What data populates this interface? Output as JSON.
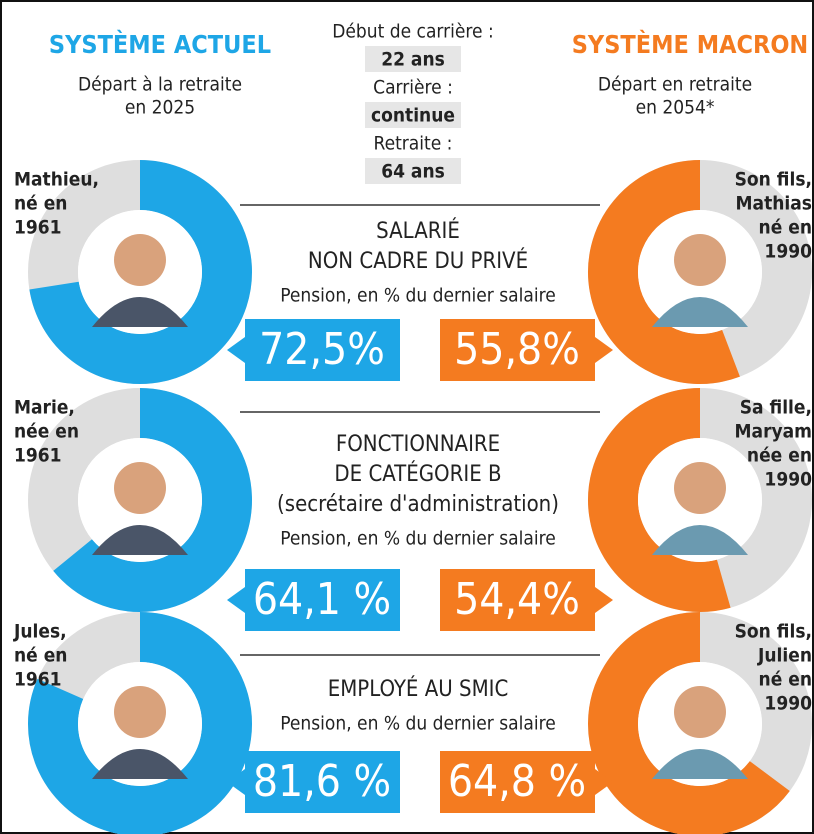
{
  "left": {
    "title": "SYSTÈME ACTUEL",
    "subtitle": [
      "Départ à la retraite",
      "en 2025"
    ]
  },
  "right": {
    "title": "SYSTÈME MACRON",
    "subtitle": [
      "Départ en retraite",
      "en 2054*"
    ]
  },
  "center": [
    {
      "label": "Début de carrière :",
      "value": "22 ans"
    },
    {
      "label": "Carrière :",
      "value": "continue"
    },
    {
      "label": "Retraite :",
      "value": "64 ans"
    }
  ],
  "rows": [
    {
      "category": [
        "SALARIÉ",
        "NON CADRE DU PRIVÉ"
      ],
      "caption": "Pension, en % du dernier salaire",
      "left": {
        "person": [
          "Mathieu,",
          "né en",
          "1961"
        ],
        "value": 72.5,
        "value_label": "72,5%"
      },
      "right": {
        "person": [
          "Son fils,",
          "Mathias",
          "né en",
          "1990"
        ],
        "value": 55.8,
        "value_label": "55,8%"
      }
    },
    {
      "category": [
        "FONCTIONNAIRE",
        "DE CATÉGORIE B",
        "(secrétaire d'administration)"
      ],
      "caption": "Pension, en % du dernier salaire",
      "left": {
        "person": [
          "Marie,",
          "née en",
          "1961"
        ],
        "value": 64.1,
        "value_label": "64,1 %"
      },
      "right": {
        "person": [
          "Sa fille,",
          "Maryam",
          "née en",
          "1990"
        ],
        "value": 54.4,
        "value_label": "54,4%"
      }
    },
    {
      "category": [
        "EMPLOYÉ AU SMIC"
      ],
      "caption": "Pension, en % du dernier salaire",
      "left": {
        "person": [
          "Jules,",
          "né en",
          "1961"
        ],
        "value": 81.6,
        "value_label": "81,6 %"
      },
      "right": {
        "person": [
          "Son fils,",
          "Julien",
          "né en",
          "1990"
        ],
        "value": 64.8,
        "value_label": "64,8 %"
      }
    }
  ]
}
